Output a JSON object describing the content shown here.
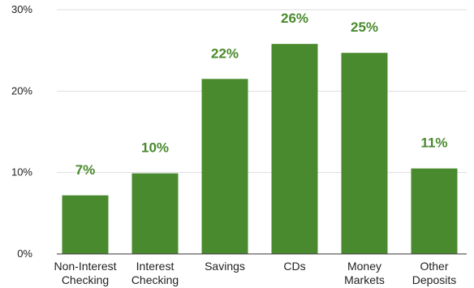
{
  "chart_data": {
    "type": "bar",
    "title": "",
    "xlabel": "",
    "ylabel": "",
    "categories": [
      [
        "Non-Interest",
        "Checking"
      ],
      [
        "Interest",
        "Checking"
      ],
      [
        "Savings"
      ],
      [
        "CDs"
      ],
      [
        "Money",
        "Markets"
      ],
      [
        "Other",
        "Deposits"
      ]
    ],
    "values": [
      7.2,
      9.9,
      21.5,
      25.8,
      24.7,
      10.5
    ],
    "data_labels": [
      "7%",
      "10%",
      "22%",
      "26%",
      "25%",
      "11%"
    ],
    "ylim": [
      0,
      30
    ],
    "yticks": [
      0,
      10,
      20,
      30
    ],
    "ytick_labels": [
      "0%",
      "10%",
      "20%",
      "30%"
    ],
    "grid": true,
    "legend": "none",
    "bar_color": "#4a8a2e",
    "label_color": "#4a8a2e",
    "grid_color": "#dddddd",
    "axis_color": "#333333"
  }
}
